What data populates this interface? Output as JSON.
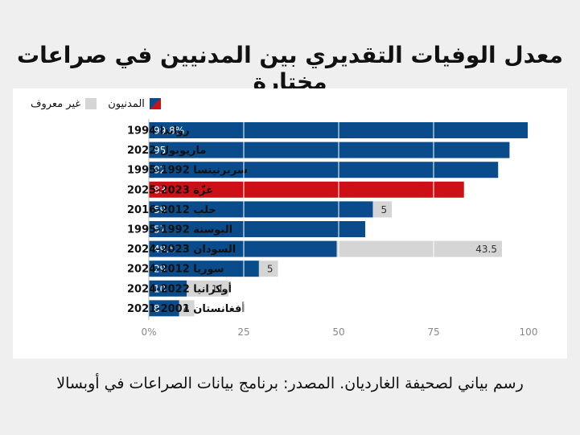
{
  "title": "معدل الوفيات التقديري بين المدنيين في صراعات مختارة",
  "legend": {
    "civilians": "المدنيون",
    "unknown": "غير معروف"
  },
  "colors": {
    "civilians": "#0a4c8b",
    "gaza": "#cc1016",
    "unknown": "#d5d5d5",
    "grid": "#ffffff"
  },
  "source": "رسم بياني لصحيفة الغارديان. المصدر: برنامج بيانات الصراعات في أوبسالا",
  "chart_data": {
    "type": "bar",
    "orientation": "horizontal",
    "stacked": true,
    "categories": [
      "رواندا 1994",
      "ماريوبول 2022",
      "سربرنيتسا 1992-1995",
      "غزّة 2023-2025",
      "حلب 2012-2016",
      "البوسنة 1992-1995",
      "السودان 2023-2024",
      "سوريا 2012-2024",
      "أوكرانيا 2022-2024",
      "أفغانستان 2001-2021"
    ],
    "series": [
      {
        "name": "المدنيون",
        "values": [
          99.8,
          95,
          92,
          83,
          59,
          57,
          49.5,
          29,
          10,
          8
        ],
        "labels": [
          "99.8%",
          "95",
          "92",
          "83",
          "59",
          "57",
          "49.5",
          "29",
          "10",
          "8"
        ]
      },
      {
        "name": "غير معروف",
        "values": [
          null,
          null,
          null,
          null,
          5,
          null,
          43.5,
          5,
          11,
          4
        ],
        "labels": [
          "",
          "",
          "",
          "",
          "5",
          "",
          "43.5",
          "5",
          "11",
          "4"
        ]
      }
    ],
    "highlight_index": 3,
    "xlim": [
      0,
      105
    ],
    "xticks": [
      0,
      25,
      50,
      75,
      100
    ],
    "xtick_labels": [
      "0%",
      "25",
      "50",
      "75",
      "100"
    ],
    "grid": true
  }
}
